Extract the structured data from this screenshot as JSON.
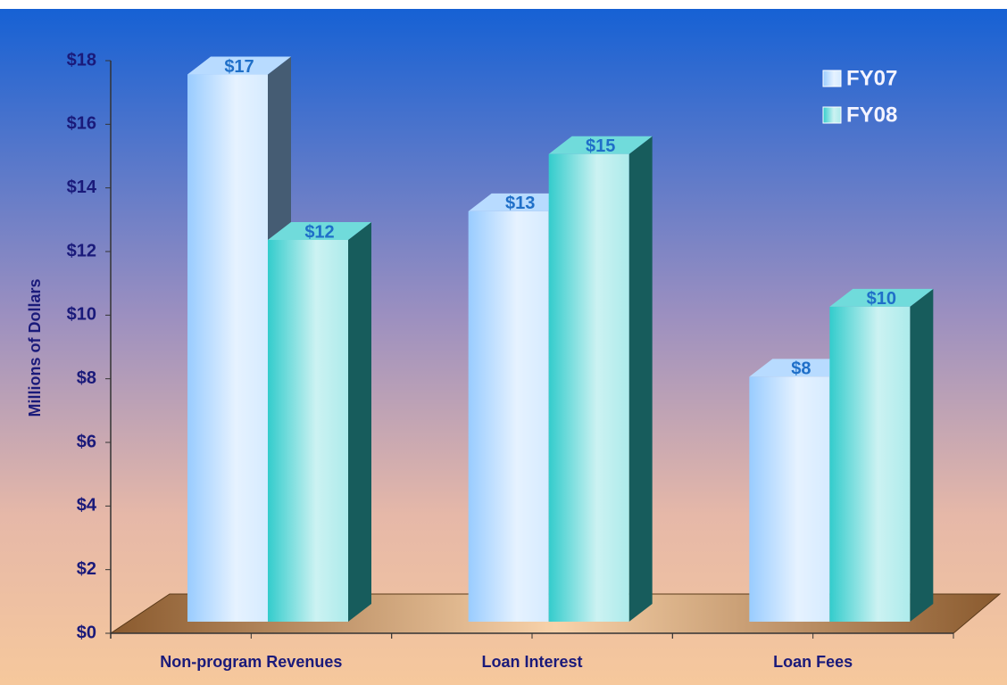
{
  "chart_data": {
    "type": "bar3d",
    "y_axis_label": "Millions of Dollars",
    "categories": [
      "Non-program Revenues",
      "Loan Interest",
      "Loan Fees"
    ],
    "series": [
      {
        "name": "FY07",
        "color": "#99ccff",
        "values": [
          17.2,
          12.9,
          7.7
        ],
        "value_labels": [
          "$17",
          "$13",
          "$8"
        ]
      },
      {
        "name": "FY08",
        "color": "#33cccc",
        "values": [
          12.0,
          14.7,
          9.9
        ],
        "value_labels": [
          "$12",
          "$15",
          "$10"
        ]
      }
    ],
    "ylim": [
      0,
      18
    ],
    "yticks": [
      {
        "value": 0,
        "label": "$0"
      },
      {
        "value": 2,
        "label": "$2"
      },
      {
        "value": 4,
        "label": "$4"
      },
      {
        "value": 6,
        "label": "$6"
      },
      {
        "value": 8,
        "label": "$8"
      },
      {
        "value": 10,
        "label": "$10"
      },
      {
        "value": 12,
        "label": "$12"
      },
      {
        "value": 14,
        "label": "$14"
      },
      {
        "value": 16,
        "label": "$16"
      },
      {
        "value": 18,
        "label": "$18"
      }
    ],
    "legend": "top-right"
  }
}
